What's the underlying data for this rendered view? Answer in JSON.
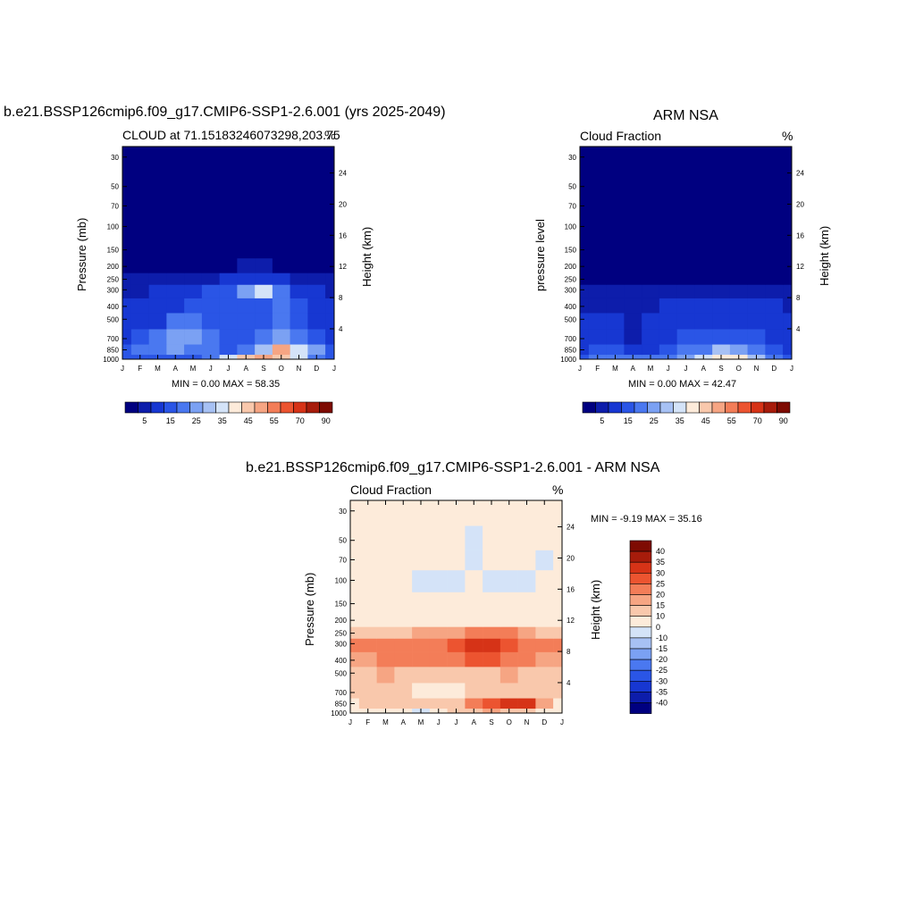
{
  "palette": {
    "fraction": [
      "#000080",
      "#0d1dab",
      "#1737d2",
      "#2a55e6",
      "#4a78f0",
      "#7ba1f3",
      "#a7c1f4",
      "#d4e3f8",
      "#fdebda",
      "#f9c8ac",
      "#f6a583",
      "#f37d58",
      "#ec5430",
      "#d63317",
      "#a71c0b",
      "#7e0b02"
    ],
    "difference": [
      "#000080",
      "#0d1dab",
      "#1737d2",
      "#2a55e6",
      "#4a78f0",
      "#7ba1f3",
      "#a7c1f4",
      "#d4e3f8",
      "#fdebda",
      "#f9c8ac",
      "#f6a583",
      "#f37d58",
      "#ec5430",
      "#d63317",
      "#a71c0b",
      "#7e0b02"
    ]
  },
  "panels": [
    {
      "id": "model",
      "title": "b.e21.BSSP126cmip6.f09_g17.CMIP6-SSP1-2.6.001 (yrs 2025-2049)",
      "subtitle_left": "CLOUD at 71.15183246073298,203.75",
      "subtitle_right": "%",
      "ylabel_left": "Pressure (mb)",
      "ylabel_right": "Height (km)",
      "stats": "MIN =   0.00 MAX =  58.35"
    },
    {
      "id": "obs",
      "title": "ARM NSA",
      "subtitle_left": "Cloud Fraction",
      "subtitle_right": "%",
      "ylabel_left": "pressure level",
      "ylabel_right": "Height (km)",
      "stats": "MIN =   0.00 MAX =  42.47"
    },
    {
      "id": "diff",
      "title": "b.e21.BSSP126cmip6.f09_g17.CMIP6-SSP1-2.6.001 - ARM NSA",
      "subtitle_left": "Cloud Fraction",
      "subtitle_right": "%",
      "ylabel_left": "Pressure (mb)",
      "ylabel_right": "Height (km)",
      "stats": "MIN =  -9.19 MAX =  35.16"
    }
  ],
  "axes": {
    "months": [
      "J",
      "F",
      "M",
      "A",
      "M",
      "J",
      "J",
      "A",
      "S",
      "O",
      "N",
      "D",
      "J"
    ],
    "pressure_ticks": [
      "30",
      "50",
      "70",
      "100",
      "150",
      "200",
      "250",
      "300",
      "400",
      "500",
      "700",
      "850",
      "1000"
    ],
    "height_ticks": [
      "24",
      "20",
      "16",
      "12",
      "8",
      "4"
    ]
  },
  "colorbars": {
    "fraction_labels": [
      "5",
      "15",
      "25",
      "35",
      "45",
      "55",
      "70",
      "90"
    ],
    "difference_labels": [
      "40",
      "35",
      "30",
      "25",
      "20",
      "15",
      "10",
      "0",
      "-10",
      "-15",
      "-20",
      "-25",
      "-30",
      "-35",
      "-40"
    ]
  },
  "chart_data": [
    {
      "type": "heatmap",
      "title": "b.e21.BSSP126cmip6.f09_g17.CMIP6-SSP1-2.6.001 (yrs 2025-2049)",
      "subtitle": "CLOUD at 71.15183246073298,203.75",
      "xlabel": "",
      "ylabel": "Pressure (mb)",
      "y2label": "Height (km)",
      "units": "%",
      "x_categories": [
        "J",
        "F",
        "M",
        "A",
        "M",
        "J",
        "J",
        "A",
        "S",
        "O",
        "N",
        "D",
        "J"
      ],
      "y_pressure_levels": [
        1000,
        850,
        700,
        500,
        400,
        300,
        250,
        200,
        150,
        100,
        70,
        50,
        30
      ],
      "values_pct": [
        [
          15,
          15,
          16,
          17,
          18,
          22,
          35,
          48,
          50,
          45,
          35,
          20,
          15
        ],
        [
          18,
          22,
          24,
          26,
          24,
          22,
          18,
          20,
          34,
          52,
          38,
          25,
          18
        ],
        [
          14,
          15,
          20,
          28,
          25,
          21,
          17,
          19,
          22,
          28,
          24,
          18,
          14
        ],
        [
          12,
          12,
          14,
          20,
          22,
          19,
          16,
          18,
          19,
          21,
          18,
          14,
          12
        ],
        [
          11,
          11,
          12,
          14,
          18,
          18,
          18,
          17,
          19,
          21,
          16,
          13,
          11
        ],
        [
          8,
          9,
          10,
          11,
          13,
          15,
          18,
          25,
          36,
          20,
          14,
          10,
          8
        ],
        [
          5,
          6,
          6,
          7,
          8,
          9,
          11,
          13,
          14,
          12,
          8,
          6,
          5
        ],
        [
          1,
          1,
          1,
          1,
          1,
          2,
          3,
          5,
          6,
          4,
          2,
          1,
          1
        ],
        [
          0,
          0,
          0,
          0,
          0,
          0,
          0,
          0,
          0,
          0,
          0,
          0,
          0
        ],
        [
          0,
          0,
          0,
          0,
          0,
          0,
          0,
          0,
          0,
          0,
          0,
          0,
          0
        ],
        [
          0,
          0,
          0,
          0,
          0,
          0,
          0,
          0,
          0,
          0,
          0,
          0,
          0
        ],
        [
          0,
          0,
          0,
          0,
          0,
          0,
          0,
          0,
          0,
          0,
          0,
          0,
          0
        ],
        [
          0,
          0,
          0,
          0,
          0,
          0,
          0,
          0,
          0,
          0,
          0,
          0,
          0
        ]
      ],
      "min": 0.0,
      "max": 58.35
    },
    {
      "type": "heatmap",
      "title": "ARM NSA",
      "subtitle": "Cloud Fraction",
      "xlabel": "",
      "ylabel": "pressure level",
      "y2label": "Height (km)",
      "units": "%",
      "x_categories": [
        "J",
        "F",
        "M",
        "A",
        "M",
        "J",
        "J",
        "A",
        "S",
        "O",
        "N",
        "D",
        "J"
      ],
      "y_pressure_levels": [
        1000,
        850,
        700,
        500,
        400,
        300,
        250,
        200,
        150,
        100,
        70,
        50,
        30
      ],
      "values_pct": [
        [
          18,
          20,
          22,
          24,
          22,
          22,
          28,
          36,
          42,
          40,
          30,
          22,
          18
        ],
        [
          14,
          16,
          16,
          12,
          14,
          16,
          20,
          24,
          30,
          26,
          22,
          17,
          14
        ],
        [
          12,
          13,
          11,
          9,
          11,
          13,
          15,
          16,
          15,
          16,
          16,
          14,
          12
        ],
        [
          11,
          10,
          10,
          9,
          10,
          12,
          14,
          14,
          13,
          14,
          14,
          12,
          11
        ],
        [
          9,
          9,
          8,
          8,
          9,
          10,
          12,
          12,
          11,
          11,
          11,
          10,
          9
        ],
        [
          5,
          5,
          5,
          5,
          5,
          6,
          7,
          7,
          7,
          7,
          6,
          5,
          5
        ],
        [
          2,
          2,
          2,
          2,
          2,
          2,
          3,
          3,
          3,
          3,
          2,
          2,
          2
        ],
        [
          1,
          1,
          1,
          1,
          1,
          1,
          1,
          1,
          1,
          1,
          1,
          1,
          1
        ],
        [
          0,
          0,
          0,
          0,
          0,
          0,
          0,
          0,
          0,
          0,
          0,
          0,
          0
        ],
        [
          0,
          0,
          0,
          0,
          0,
          0,
          0,
          0,
          0,
          0,
          0,
          0,
          0
        ],
        [
          0,
          0,
          0,
          0,
          0,
          0,
          0,
          0,
          0,
          0,
          0,
          0,
          0
        ],
        [
          0,
          0,
          0,
          0,
          0,
          0,
          0,
          0,
          0,
          0,
          0,
          0,
          0
        ],
        [
          0,
          0,
          0,
          0,
          0,
          0,
          0,
          0,
          0,
          0,
          0,
          0,
          0
        ]
      ],
      "min": 0.0,
      "max": 42.47
    },
    {
      "type": "heatmap",
      "title": "b.e21.BSSP126cmip6.f09_g17.CMIP6-SSP1-2.6.001 - ARM NSA",
      "subtitle": "Cloud Fraction",
      "xlabel": "",
      "ylabel": "Pressure (mb)",
      "y2label": "Height (km)",
      "units": "%",
      "x_categories": [
        "J",
        "F",
        "M",
        "A",
        "M",
        "J",
        "J",
        "A",
        "S",
        "O",
        "N",
        "D",
        "J"
      ],
      "y_pressure_levels": [
        1000,
        850,
        700,
        500,
        400,
        300,
        250,
        200,
        150,
        100,
        70,
        50,
        30
      ],
      "values_pct": [
        [
          3,
          3,
          4,
          5,
          -1,
          6,
          10,
          14,
          16,
          14,
          12,
          8,
          3
        ],
        [
          8,
          10,
          12,
          12,
          12,
          10,
          14,
          22,
          28,
          33,
          30,
          18,
          8
        ],
        [
          12,
          12,
          14,
          10,
          8,
          7,
          8,
          10,
          12,
          14,
          12,
          10,
          12
        ],
        [
          14,
          14,
          16,
          14,
          12,
          10,
          12,
          14,
          14,
          15,
          14,
          14,
          14
        ],
        [
          18,
          18,
          20,
          22,
          20,
          20,
          24,
          26,
          27,
          24,
          20,
          18,
          18
        ],
        [
          20,
          20,
          20,
          22,
          22,
          24,
          28,
          30,
          34,
          28,
          24,
          22,
          20
        ],
        [
          10,
          11,
          12,
          14,
          16,
          17,
          18,
          20,
          22,
          20,
          18,
          12,
          10
        ],
        [
          5,
          5,
          5,
          5,
          5,
          5,
          5,
          6,
          6,
          6,
          5,
          5,
          5
        ],
        [
          4,
          4,
          4,
          4,
          4,
          4,
          4,
          4,
          4,
          4,
          4,
          4,
          4
        ],
        [
          2,
          2,
          2,
          2,
          -2,
          -2,
          -2,
          2,
          -2,
          -2,
          -2,
          2,
          2
        ],
        [
          2,
          2,
          2,
          2,
          2,
          2,
          2,
          -3,
          2,
          2,
          2,
          -3,
          2
        ],
        [
          2,
          2,
          2,
          2,
          2,
          2,
          2,
          -3,
          2,
          2,
          2,
          2,
          2
        ],
        [
          2,
          2,
          2,
          2,
          2,
          2,
          2,
          2,
          2,
          2,
          2,
          2,
          2
        ]
      ],
      "min": -9.19,
      "max": 35.16
    }
  ]
}
